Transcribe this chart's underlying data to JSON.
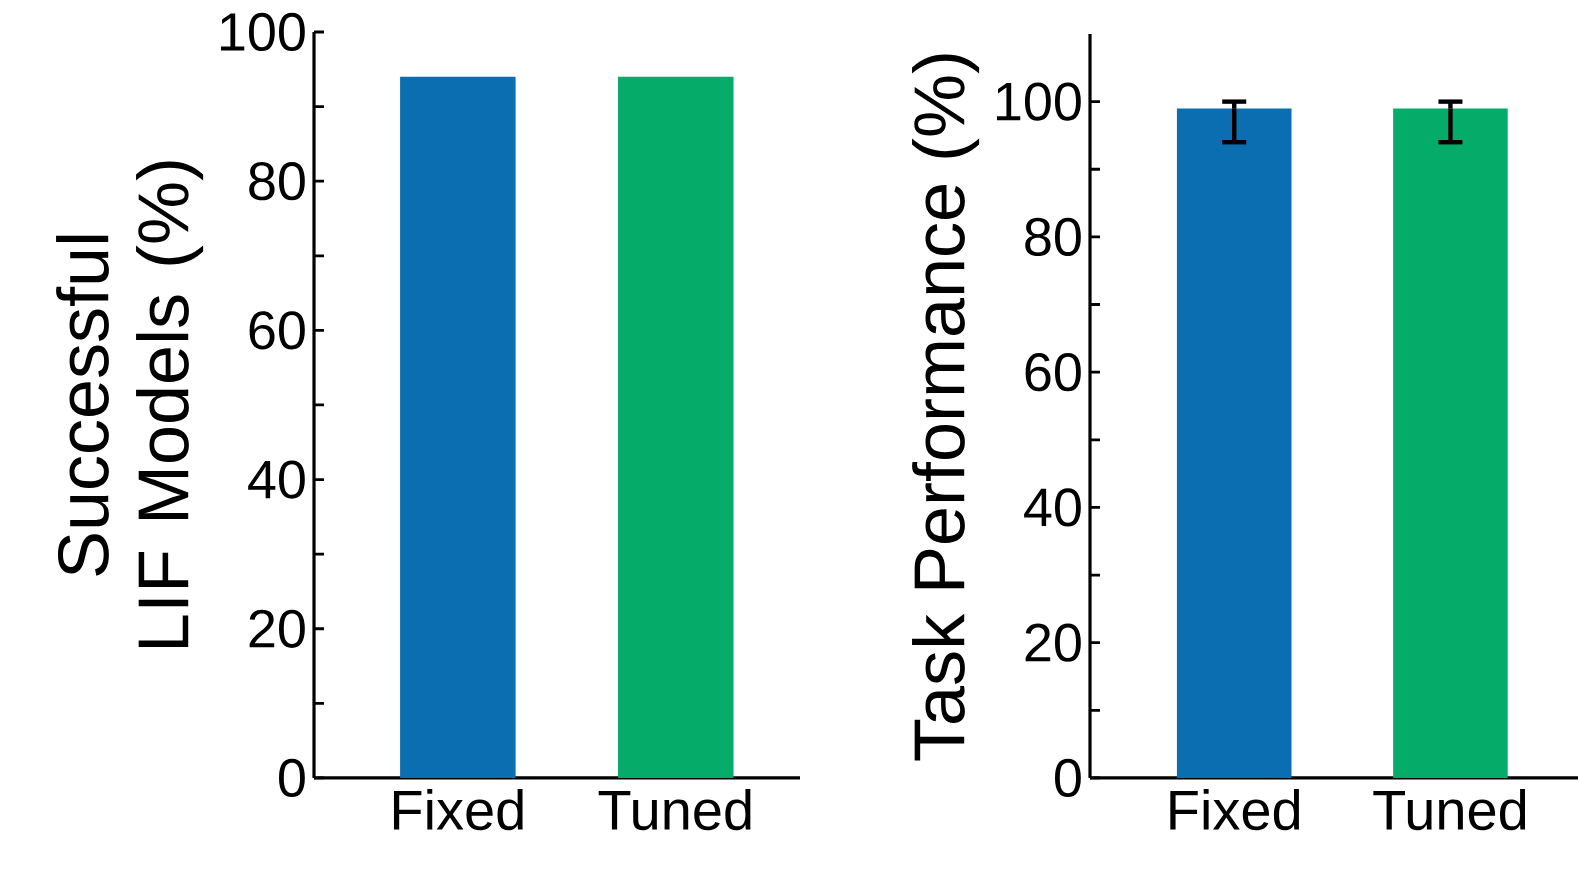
{
  "chart_data": [
    {
      "type": "bar",
      "ylabel": "Successful LIF Models (%)",
      "categories": [
        "Fixed",
        "Tuned"
      ],
      "values": [
        94,
        94
      ],
      "colors": [
        "#0a6eb0",
        "#05ab68"
      ],
      "ylim": [
        0,
        100
      ],
      "yticks": [
        0,
        {
          "value": 10,
          "label": null
        },
        20,
        {
          "value": 30,
          "label": null
        },
        40,
        {
          "value": 50,
          "label": null
        },
        60,
        {
          "value": 70,
          "label": null
        },
        80,
        {
          "value": 90,
          "label": null
        },
        100
      ]
    },
    {
      "type": "bar",
      "ylabel": "Task Performance (%)",
      "categories": [
        "Fixed",
        "Tuned"
      ],
      "values": [
        99,
        99
      ],
      "errors": [
        [
          94,
          100
        ],
        [
          94,
          100
        ]
      ],
      "colors": [
        "#0a6eb0",
        "#05ab68"
      ],
      "ylim": [
        0,
        110
      ],
      "yticks": [
        0,
        {
          "value": 10,
          "label": null
        },
        20,
        {
          "value": 30,
          "label": null
        },
        40,
        {
          "value": 50,
          "label": null
        },
        60,
        {
          "value": 70,
          "label": null
        },
        80,
        {
          "value": 90,
          "label": null
        },
        100
      ]
    }
  ]
}
